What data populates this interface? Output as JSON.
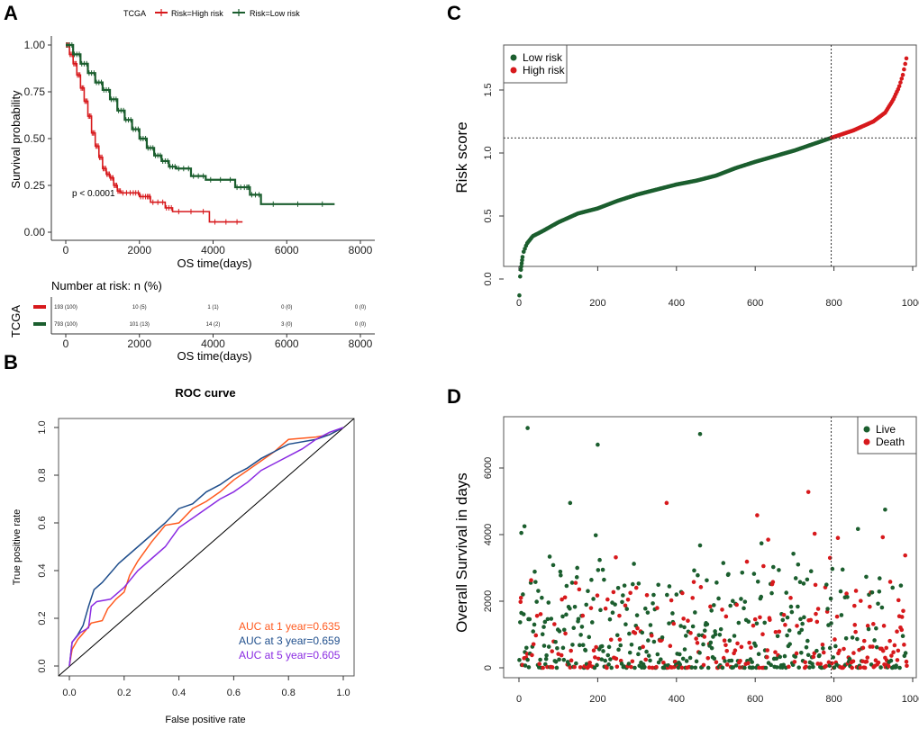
{
  "panels": {
    "A": {
      "label": "A",
      "legend_title": "TCGA",
      "legend_items": [
        "Risk=High risk",
        "Risk=Low risk"
      ],
      "pvalue": "p < 0.0001",
      "risk_table_title": "Number at risk: n (%)",
      "risk_table_ylabel": "TCGA"
    },
    "B": {
      "label": "B"
    },
    "C": {
      "label": "C"
    },
    "D": {
      "label": "D"
    }
  },
  "colors": {
    "high_risk": "#d7191c",
    "low_risk": "#1b5e2e",
    "auc1": "#ff5a1f",
    "auc3": "#1f4e8c",
    "auc5": "#8a2be2",
    "live": "#1b5e2e",
    "death": "#d7191c"
  },
  "chart_data": [
    {
      "id": "A",
      "type": "line",
      "title": "",
      "xlabel": "OS time(days)",
      "ylabel": "Survival probability",
      "xlim": [
        0,
        8000
      ],
      "ylim": [
        0,
        1
      ],
      "xticks": [
        0,
        2000,
        4000,
        6000,
        8000
      ],
      "yticks": [
        "0.00",
        "0.25",
        "0.50",
        "0.75",
        "1.00"
      ],
      "legend": "top",
      "annotation": "p < 0.0001",
      "series": [
        {
          "name": "Risk=High risk",
          "x": [
            0,
            100,
            200,
            300,
            400,
            500,
            600,
            700,
            800,
            900,
            1000,
            1100,
            1200,
            1300,
            1400,
            1500,
            1800,
            2000,
            2200,
            2300,
            2700,
            2900,
            3900,
            4800
          ],
          "y": [
            1.0,
            0.95,
            0.9,
            0.84,
            0.77,
            0.7,
            0.62,
            0.53,
            0.46,
            0.4,
            0.34,
            0.31,
            0.29,
            0.25,
            0.22,
            0.21,
            0.21,
            0.19,
            0.19,
            0.16,
            0.13,
            0.11,
            0.055,
            0.055
          ]
        },
        {
          "name": "Risk=Low risk",
          "x": [
            0,
            200,
            400,
            600,
            800,
            1000,
            1200,
            1400,
            1600,
            1800,
            2000,
            2200,
            2400,
            2600,
            2800,
            3000,
            3400,
            3800,
            4600,
            4900,
            5000,
            5300,
            7300
          ],
          "y": [
            1.0,
            0.95,
            0.9,
            0.85,
            0.8,
            0.76,
            0.71,
            0.65,
            0.6,
            0.55,
            0.5,
            0.45,
            0.41,
            0.38,
            0.35,
            0.34,
            0.3,
            0.28,
            0.24,
            0.24,
            0.2,
            0.15,
            0.15
          ]
        }
      ],
      "risk_table": {
        "title": "Number at risk: n (%)",
        "times": [
          0,
          2000,
          4000,
          6000,
          8000
        ],
        "rows": [
          {
            "name": "High risk",
            "values": [
              "193 (100)",
              "10 (5)",
              "1 (1)",
              "0 (0)",
              "0 (0)"
            ]
          },
          {
            "name": "Low risk",
            "values": [
              "793 (100)",
              "101 (13)",
              "14 (2)",
              "3 (0)",
              "0 (0)"
            ]
          }
        ]
      }
    },
    {
      "id": "B",
      "type": "line",
      "title": "ROC curve",
      "xlabel": "False positive rate",
      "ylabel": "True positive rate",
      "xlim": [
        0,
        1
      ],
      "ylim": [
        0,
        1
      ],
      "xticks": [
        "0.0",
        "0.2",
        "0.4",
        "0.6",
        "0.8",
        "1.0"
      ],
      "yticks": [
        "0.0",
        "0.2",
        "0.4",
        "0.6",
        "0.8",
        "1.0"
      ],
      "legend": "bottom-right",
      "series": [
        {
          "name": "AUC at 1 year=0.635",
          "x": [
            0,
            0.01,
            0.03,
            0.06,
            0.08,
            0.12,
            0.14,
            0.17,
            0.2,
            0.22,
            0.25,
            0.3,
            0.35,
            0.4,
            0.45,
            0.5,
            0.55,
            0.6,
            0.65,
            0.7,
            0.75,
            0.8,
            0.9,
            0.95,
            1.0
          ],
          "y": [
            0,
            0.07,
            0.11,
            0.15,
            0.18,
            0.19,
            0.24,
            0.28,
            0.31,
            0.38,
            0.44,
            0.52,
            0.59,
            0.6,
            0.66,
            0.69,
            0.73,
            0.78,
            0.82,
            0.86,
            0.9,
            0.95,
            0.96,
            0.97,
            1.0
          ]
        },
        {
          "name": "AUC at 3 year=0.659",
          "x": [
            0,
            0.01,
            0.03,
            0.05,
            0.07,
            0.09,
            0.12,
            0.15,
            0.18,
            0.2,
            0.25,
            0.3,
            0.35,
            0.4,
            0.45,
            0.5,
            0.55,
            0.6,
            0.65,
            0.7,
            0.75,
            0.8,
            0.9,
            0.95,
            1.0
          ],
          "y": [
            0,
            0.1,
            0.13,
            0.17,
            0.25,
            0.32,
            0.35,
            0.39,
            0.43,
            0.45,
            0.5,
            0.55,
            0.6,
            0.66,
            0.68,
            0.73,
            0.76,
            0.8,
            0.83,
            0.87,
            0.9,
            0.93,
            0.95,
            0.97,
            1.0
          ]
        },
        {
          "name": "AUC at 5 year=0.605",
          "x": [
            0,
            0.01,
            0.04,
            0.07,
            0.08,
            0.1,
            0.15,
            0.2,
            0.25,
            0.3,
            0.35,
            0.4,
            0.45,
            0.5,
            0.55,
            0.6,
            0.65,
            0.7,
            0.75,
            0.8,
            0.85,
            0.9,
            0.95,
            1.0
          ],
          "y": [
            0,
            0.1,
            0.14,
            0.16,
            0.25,
            0.27,
            0.28,
            0.33,
            0.4,
            0.45,
            0.5,
            0.58,
            0.62,
            0.66,
            0.7,
            0.73,
            0.77,
            0.82,
            0.85,
            0.88,
            0.91,
            0.95,
            0.98,
            1.0
          ]
        }
      ],
      "diagonal": true
    },
    {
      "id": "C",
      "type": "scatter",
      "title": "",
      "xlabel": "",
      "ylabel": "Risk score",
      "xlim": [
        0,
        1000
      ],
      "ylim": [
        -0.15,
        1.8
      ],
      "xticks": [
        0,
        200,
        400,
        600,
        800,
        1000
      ],
      "yticks": [
        "0.0",
        "0.5",
        "1.0",
        "1.5"
      ],
      "legend": "top-left",
      "legend_items": [
        "Low risk",
        "High risk"
      ],
      "cutoff_x": 793,
      "cutoff_y": 1.12,
      "n_total": 986,
      "curve_profile": {
        "index": [
          1,
          3,
          6,
          10,
          20,
          35,
          60,
          100,
          150,
          200,
          250,
          300,
          400,
          450,
          500,
          550,
          600,
          700,
          793,
          850,
          900,
          930,
          950,
          965,
          975,
          986
        ],
        "score": [
          -0.13,
          0.02,
          0.1,
          0.2,
          0.28,
          0.34,
          0.38,
          0.45,
          0.52,
          0.56,
          0.62,
          0.67,
          0.75,
          0.78,
          0.82,
          0.88,
          0.93,
          1.02,
          1.12,
          1.18,
          1.25,
          1.32,
          1.42,
          1.52,
          1.62,
          1.78
        ]
      },
      "series": [
        {
          "name": "Low risk",
          "range": [
            1,
            793
          ]
        },
        {
          "name": "High risk",
          "range": [
            794,
            986
          ]
        }
      ]
    },
    {
      "id": "D",
      "type": "scatter",
      "title": "",
      "xlabel": "",
      "ylabel": "Overall Survival in days",
      "xlim": [
        0,
        1000
      ],
      "ylim": [
        0,
        7300
      ],
      "xticks": [
        0,
        200,
        400,
        600,
        800,
        1000
      ],
      "yticks": [
        "0",
        "2000",
        "4000",
        "6000"
      ],
      "legend": "top-right",
      "legend_items": [
        "Live",
        "Death"
      ],
      "cutoff_x": 793,
      "notable_points": [
        {
          "x": 22,
          "y": 7200,
          "status": "Live"
        },
        {
          "x": 200,
          "y": 6700,
          "status": "Live"
        },
        {
          "x": 460,
          "y": 7020,
          "status": "Live"
        },
        {
          "x": 6,
          "y": 4050,
          "status": "Live"
        },
        {
          "x": 14,
          "y": 4250,
          "status": "Live"
        },
        {
          "x": 130,
          "y": 4950,
          "status": "Live"
        },
        {
          "x": 375,
          "y": 4950,
          "status": "Death"
        },
        {
          "x": 735,
          "y": 5280,
          "status": "Death"
        },
        {
          "x": 605,
          "y": 4580,
          "status": "Death"
        },
        {
          "x": 930,
          "y": 4750,
          "status": "Live"
        },
        {
          "x": 790,
          "y": 3300,
          "status": "Death"
        },
        {
          "x": 5,
          "y": 2100,
          "status": "Death"
        }
      ],
      "description": "Dense cloud of ~986 points, mostly below 2000 days; Death points more frequent right of cutoff"
    }
  ]
}
